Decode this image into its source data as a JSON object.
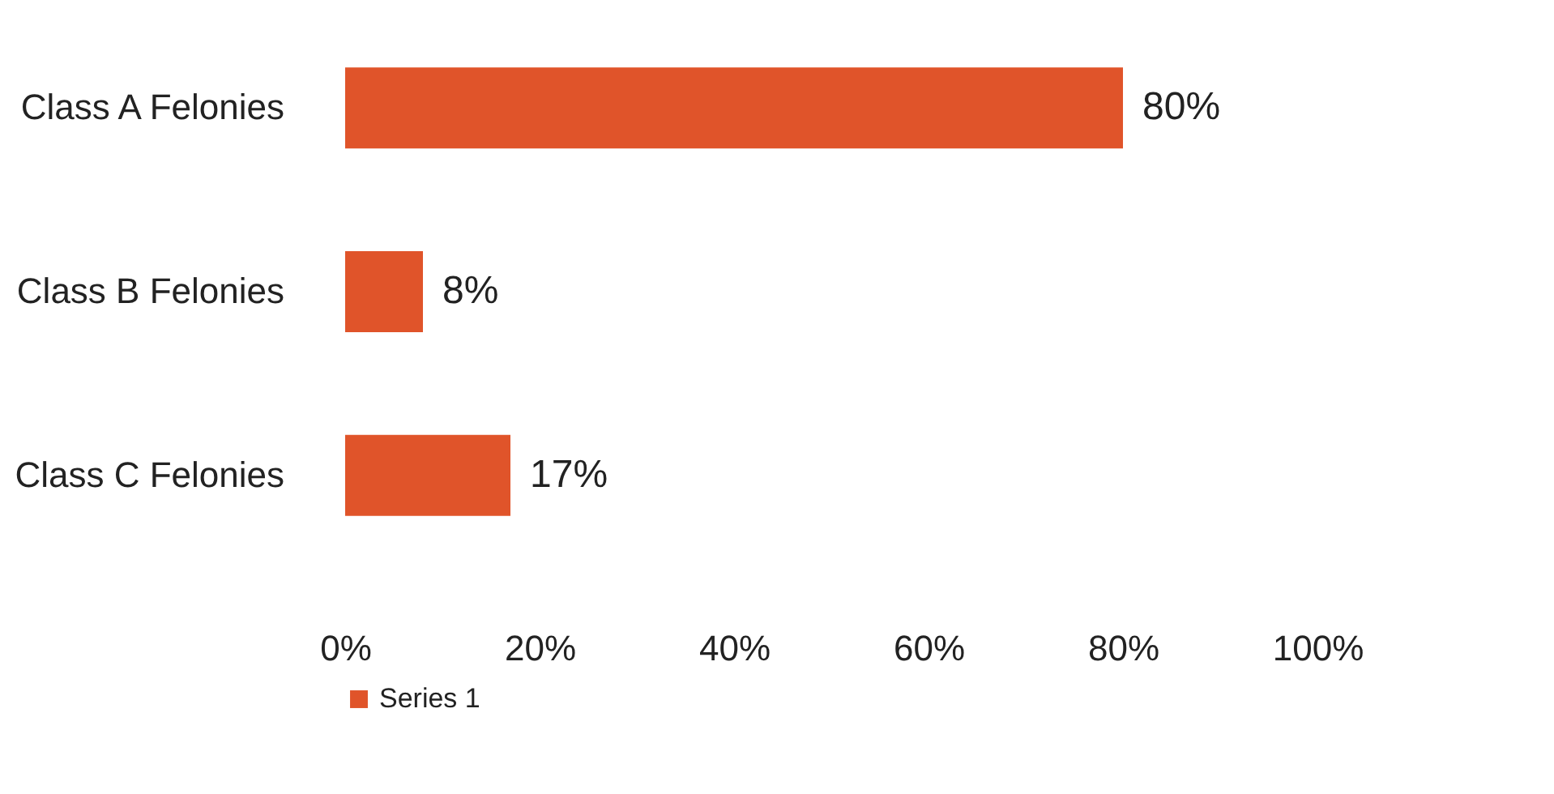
{
  "chart_data": {
    "type": "bar",
    "orientation": "horizontal",
    "categories": [
      "Class A Felonies",
      "Class B Felonies",
      "Class C Felonies"
    ],
    "series": [
      {
        "name": "Series 1",
        "color": "#e0542a",
        "values": [
          80,
          8,
          17
        ],
        "value_labels": [
          "80%",
          "8%",
          "17%"
        ]
      }
    ],
    "xlim": [
      0,
      100
    ],
    "xticks": [
      {
        "value": 0,
        "label": "0%"
      },
      {
        "value": 20,
        "label": "20%"
      },
      {
        "value": 40,
        "label": "40%"
      },
      {
        "value": 60,
        "label": "60%"
      },
      {
        "value": 80,
        "label": "80%"
      },
      {
        "value": 100,
        "label": "100%"
      }
    ],
    "grid": false,
    "legend": "bottom"
  }
}
